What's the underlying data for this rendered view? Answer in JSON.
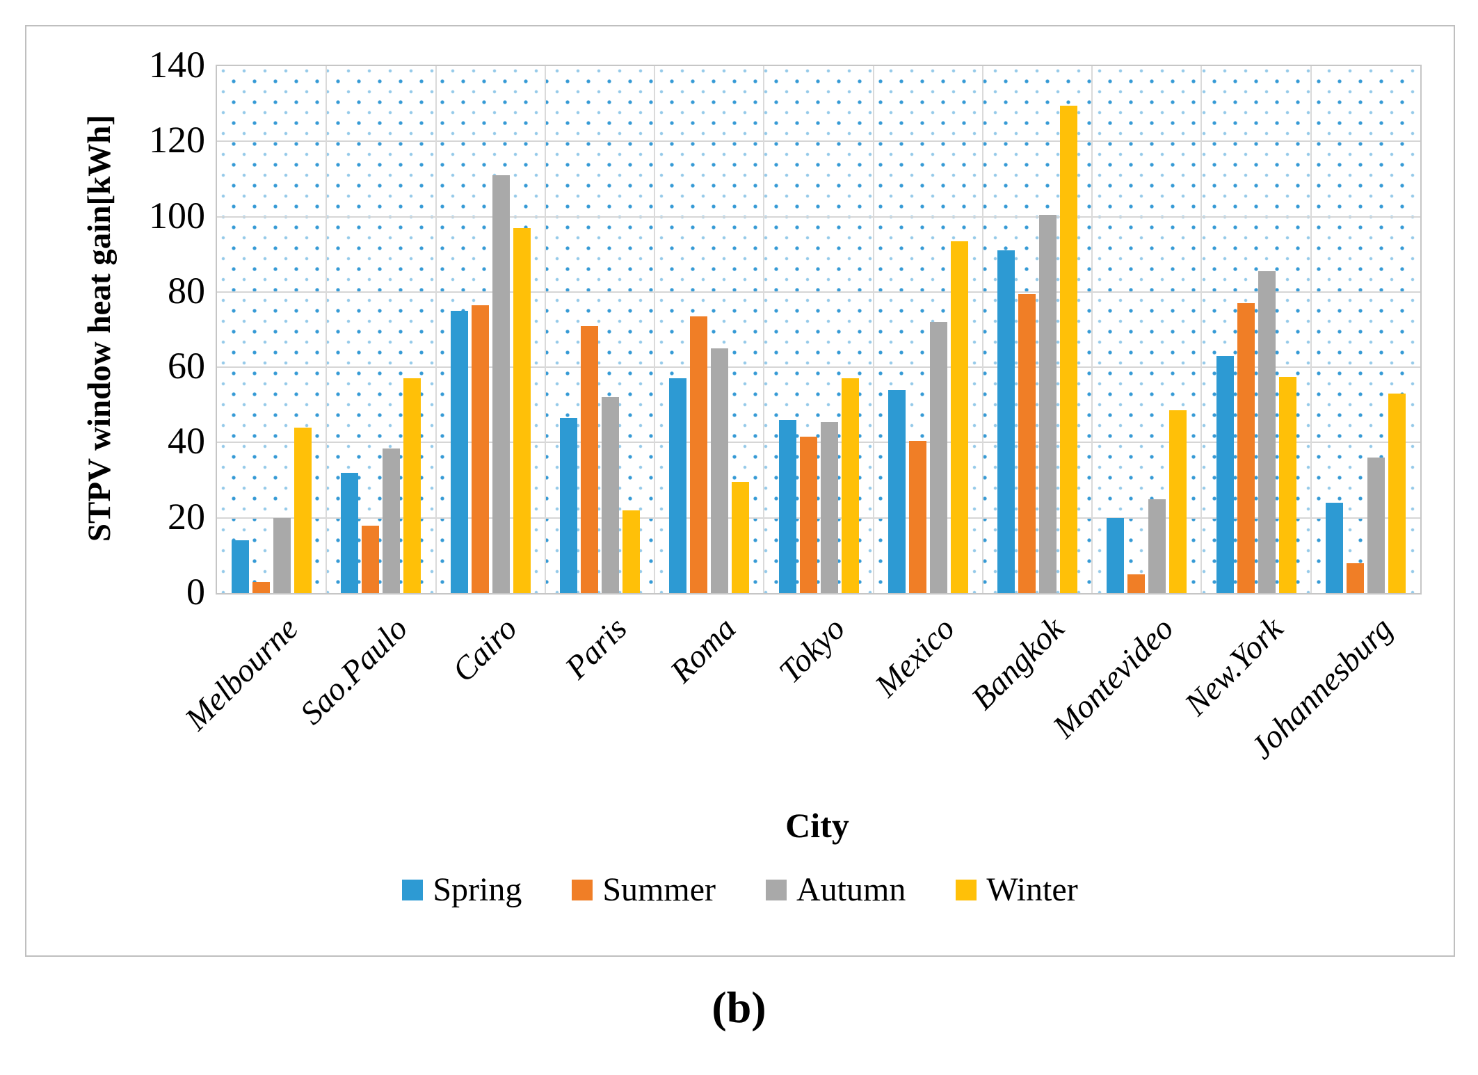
{
  "figure": {
    "caption": "(b)"
  },
  "chart_data": {
    "type": "bar",
    "title": "",
    "xlabel": "City",
    "ylabel": "STPV window heat gain[kWh]",
    "ylim": [
      0,
      140
    ],
    "ytick_interval": 20,
    "ytick_labels": [
      "0",
      "20",
      "40",
      "60",
      "80",
      "100",
      "120",
      "140"
    ],
    "grid": true,
    "legend_position": "bottom",
    "plot_background": "blue dotted pattern",
    "categories": [
      "Melbourne",
      "Sao.Paulo",
      "Cairo",
      "Paris",
      "Roma",
      "Tokyo",
      "Mexico",
      "Bangkok",
      "Montevideo",
      "New.York",
      "Johannesburg"
    ],
    "series": [
      {
        "name": "Spring",
        "color": "#2d9ad3",
        "values": [
          14,
          32,
          75,
          46.5,
          57,
          46,
          54,
          91,
          20,
          63,
          24
        ]
      },
      {
        "name": "Summer",
        "color": "#f07e26",
        "values": [
          3,
          18,
          76.5,
          71,
          73.5,
          41.5,
          40.5,
          79.5,
          5,
          77,
          8
        ]
      },
      {
        "name": "Autumn",
        "color": "#a9a9a9",
        "values": [
          20,
          38.5,
          111,
          52,
          65,
          45.5,
          72,
          100.5,
          25,
          85.5,
          36
        ]
      },
      {
        "name": "Winter",
        "color": "#ffc008",
        "values": [
          44,
          57,
          97,
          22,
          29.5,
          57,
          93.5,
          129.5,
          48.5,
          57.5,
          53
        ]
      }
    ]
  }
}
